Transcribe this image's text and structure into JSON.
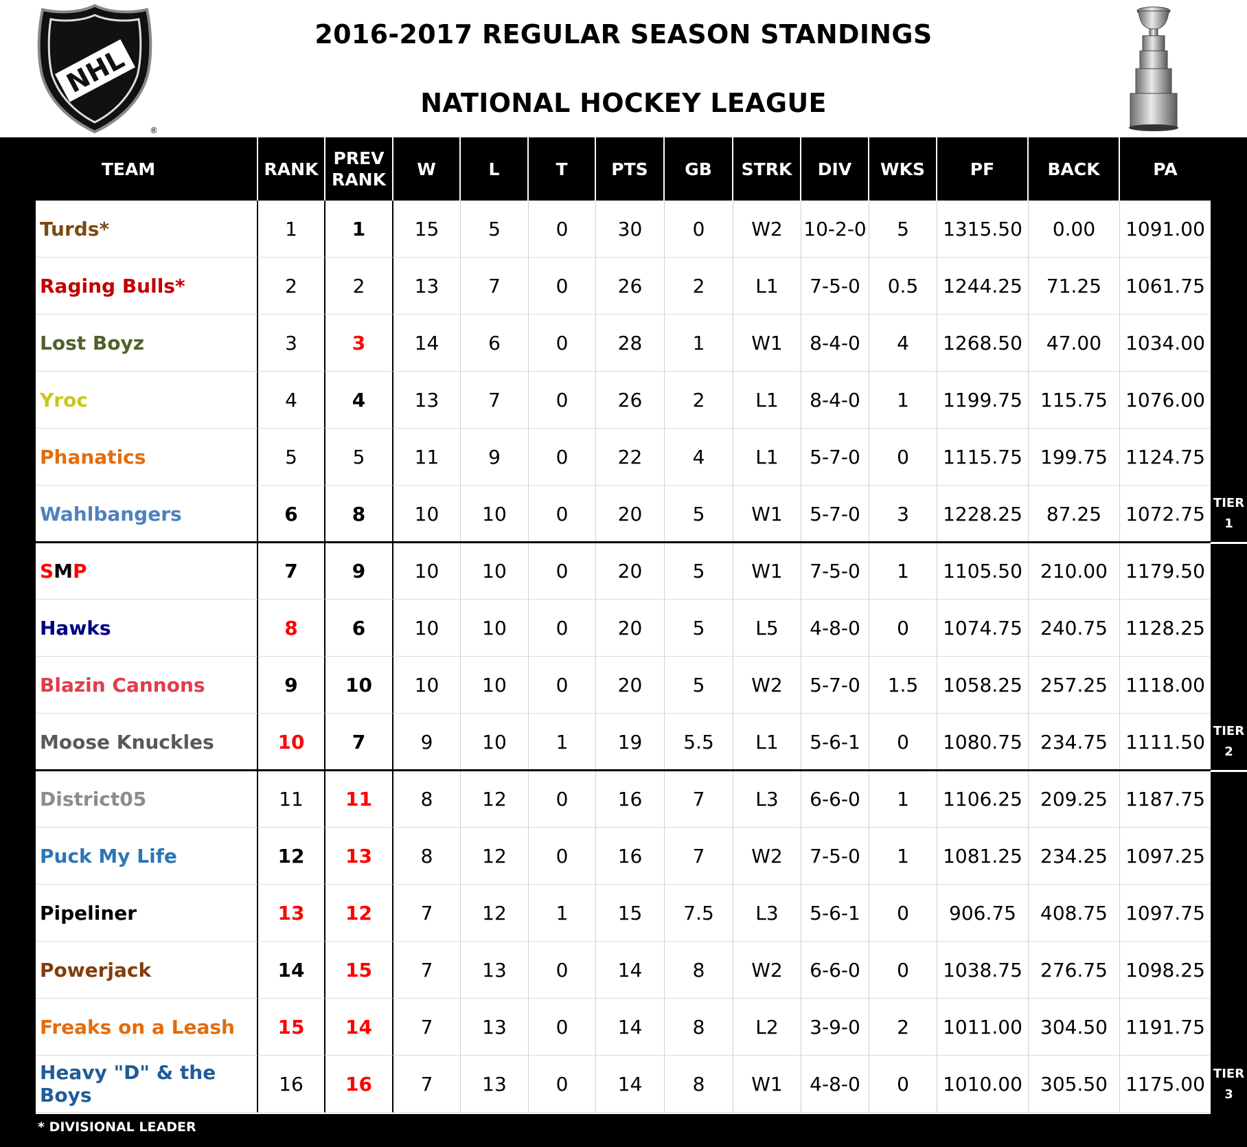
{
  "header": {
    "title_line1": "2016-2017 REGULAR SEASON STANDINGS",
    "title_line2": "NATIONAL HOCKEY LEAGUE",
    "logo_text": "NHL"
  },
  "columns": [
    "TEAM",
    "RANK",
    "PREV RANK",
    "W",
    "L",
    "T",
    "PTS",
    "GB",
    "STRK",
    "DIV",
    "WKS",
    "PF",
    "BACK",
    "PA"
  ],
  "colors": {
    "header_bg": "#000000",
    "changed_rank": "#ff0000"
  },
  "teams": [
    {
      "team": "Turds*",
      "color": "#7b4a12",
      "rank": "1",
      "prev_rank": "1",
      "w": "15",
      "l": "5",
      "t": "0",
      "pts": "30",
      "gb": "0",
      "strk": "W2",
      "div": "10-2-0",
      "wks": "5",
      "pf": "1315.50",
      "back": "0.00",
      "pa": "1091.00"
    },
    {
      "team": "Raging Bulls*",
      "color": "#c00000",
      "rank": "2",
      "prev_rank": "2",
      "w": "13",
      "l": "7",
      "t": "0",
      "pts": "26",
      "gb": "2",
      "strk": "L1",
      "div": "7-5-0",
      "wks": "0.5",
      "pf": "1244.25",
      "back": "71.25",
      "pa": "1061.75"
    },
    {
      "team": "Lost Boyz",
      "color": "#4f6228",
      "rank": "3",
      "prev_rank": "3",
      "w": "14",
      "l": "6",
      "t": "0",
      "pts": "28",
      "gb": "1",
      "strk": "W1",
      "div": "8-4-0",
      "wks": "4",
      "pf": "1268.50",
      "back": "47.00",
      "pa": "1034.00"
    },
    {
      "team": "Yroc",
      "color": "#c9c91a",
      "rank": "4",
      "prev_rank": "4",
      "w": "13",
      "l": "7",
      "t": "0",
      "pts": "26",
      "gb": "2",
      "strk": "L1",
      "div": "8-4-0",
      "wks": "1",
      "pf": "1199.75",
      "back": "115.75",
      "pa": "1076.00"
    },
    {
      "team": "Phanatics",
      "color": "#e46c0a",
      "rank": "5",
      "prev_rank": "5",
      "w": "11",
      "l": "9",
      "t": "0",
      "pts": "22",
      "gb": "4",
      "strk": "L1",
      "div": "5-7-0",
      "wks": "0",
      "pf": "1115.75",
      "back": "199.75",
      "pa": "1124.75"
    },
    {
      "team": "Wahlbangers",
      "color": "#4f81bd",
      "rank": "6",
      "prev_rank": "8",
      "w": "10",
      "l": "10",
      "t": "0",
      "pts": "20",
      "gb": "5",
      "strk": "W1",
      "div": "5-7-0",
      "wks": "3",
      "pf": "1228.25",
      "back": "87.25",
      "pa": "1072.75"
    },
    {
      "team_parts": [
        "S",
        "M",
        "P"
      ],
      "rank": "7",
      "prev_rank": "9",
      "w": "10",
      "l": "10",
      "t": "0",
      "pts": "20",
      "gb": "5",
      "strk": "W1",
      "div": "7-5-0",
      "wks": "1",
      "pf": "1105.50",
      "back": "210.00",
      "pa": "1179.50"
    },
    {
      "team": "Hawks",
      "color": "#000080",
      "rank": "8",
      "prev_rank": "6",
      "w": "10",
      "l": "10",
      "t": "0",
      "pts": "20",
      "gb": "5",
      "strk": "L5",
      "div": "4-8-0",
      "wks": "0",
      "pf": "1074.75",
      "back": "240.75",
      "pa": "1128.25"
    },
    {
      "team": "Blazin Cannons",
      "color": "#e03c4b",
      "rank": "9",
      "prev_rank": "10",
      "w": "10",
      "l": "10",
      "t": "0",
      "pts": "20",
      "gb": "5",
      "strk": "W2",
      "div": "5-7-0",
      "wks": "1.5",
      "pf": "1058.25",
      "back": "257.25",
      "pa": "1118.00"
    },
    {
      "team": "Moose Knuckles",
      "color": "#595959",
      "rank": "10",
      "prev_rank": "7",
      "w": "9",
      "l": "10",
      "t": "1",
      "pts": "19",
      "gb": "5.5",
      "strk": "L1",
      "div": "5-6-1",
      "wks": "0",
      "pf": "1080.75",
      "back": "234.75",
      "pa": "1111.50"
    },
    {
      "team": "District05",
      "color": "#8c8c8c",
      "rank": "11",
      "prev_rank": "11",
      "w": "8",
      "l": "12",
      "t": "0",
      "pts": "16",
      "gb": "7",
      "strk": "L3",
      "div": "6-6-0",
      "wks": "1",
      "pf": "1106.25",
      "back": "209.25",
      "pa": "1187.75"
    },
    {
      "team": "Puck My Life",
      "color": "#2e75b6",
      "rank": "12",
      "prev_rank": "13",
      "w": "8",
      "l": "12",
      "t": "0",
      "pts": "16",
      "gb": "7",
      "strk": "W2",
      "div": "7-5-0",
      "wks": "1",
      "pf": "1081.25",
      "back": "234.25",
      "pa": "1097.25"
    },
    {
      "team": "Pipeliner",
      "color": "#000000",
      "rank": "13",
      "prev_rank": "12",
      "w": "7",
      "l": "12",
      "t": "1",
      "pts": "15",
      "gb": "7.5",
      "strk": "L3",
      "div": "5-6-1",
      "wks": "0",
      "pf": "906.75",
      "back": "408.75",
      "pa": "1097.75"
    },
    {
      "team": "Powerjack",
      "color": "#843c0c",
      "rank": "14",
      "prev_rank": "15",
      "w": "7",
      "l": "13",
      "t": "0",
      "pts": "14",
      "gb": "8",
      "strk": "W2",
      "div": "6-6-0",
      "wks": "0",
      "pf": "1038.75",
      "back": "276.75",
      "pa": "1098.25"
    },
    {
      "team": "Freaks on a Leash",
      "color": "#e46c0a",
      "rank": "15",
      "prev_rank": "14",
      "w": "7",
      "l": "13",
      "t": "0",
      "pts": "14",
      "gb": "8",
      "strk": "L2",
      "div": "3-9-0",
      "wks": "2",
      "pf": "1011.00",
      "back": "304.50",
      "pa": "1191.75"
    },
    {
      "team": "Heavy \"D\" & the Boys",
      "color": "#1f5c99",
      "rank": "16",
      "prev_rank": "16",
      "w": "7",
      "l": "13",
      "t": "0",
      "pts": "14",
      "gb": "8",
      "strk": "W1",
      "div": "4-8-0",
      "wks": "0",
      "pf": "1010.00",
      "back": "305.50",
      "pa": "1175.00"
    }
  ],
  "tiers": [
    {
      "line1": "TIER",
      "line2": "1"
    },
    {
      "line1": "TIER",
      "line2": "2"
    },
    {
      "line1": "TIER",
      "line2": "3"
    }
  ],
  "footnote": "* DIVISIONAL LEADER"
}
